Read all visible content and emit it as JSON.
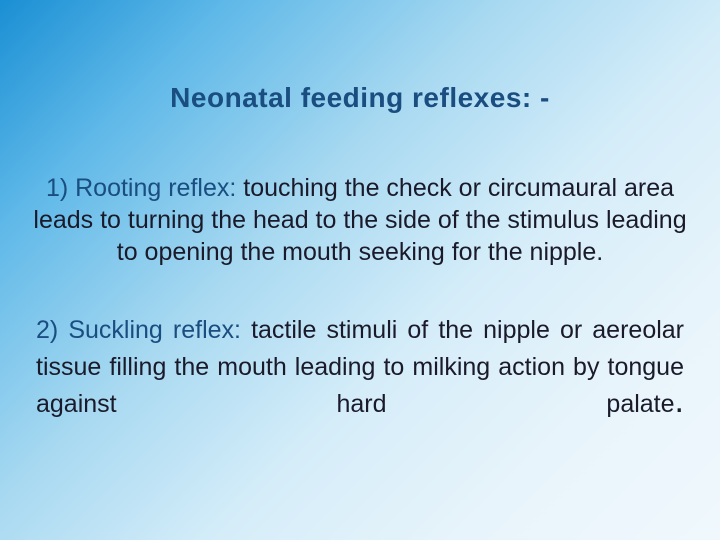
{
  "slide": {
    "title": "Neonatal feeding reflexes: -",
    "item1": {
      "label": "1) Rooting reflex:",
      "text": " touching the check or circumaural area leads to turning the head to the side of the stimulus leading to opening the mouth seeking for the nipple."
    },
    "item2": {
      "label": "2) Suckling reflex:",
      "text": " tactile stimuli of the nipple or aereolar tissue filling the mouth leading to milking action by tongue against hard palate",
      "period": "."
    }
  },
  "style": {
    "background_gradient": [
      "#1a8fd4",
      "#5eb8e8",
      "#a8d9f1",
      "#d5edf9",
      "#e8f4fb",
      "#f0f8fd"
    ],
    "title_color": "#1a4d80",
    "label_color": "#1a4d80",
    "body_color": "#1a1a2a",
    "title_fontsize": 28,
    "body_fontsize": 25,
    "font_family": "Verdana"
  }
}
